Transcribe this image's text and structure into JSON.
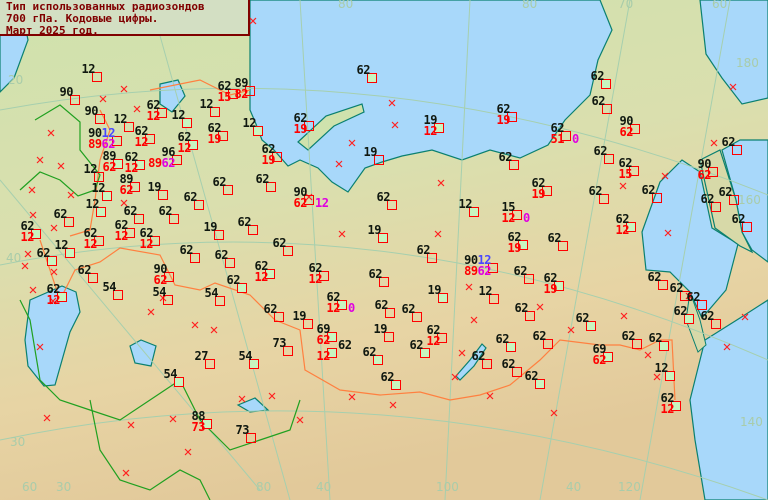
{
  "title": {
    "line1": "Тип использованных радиозондов",
    "line2": "700 гПа. Кодовые цифры.",
    "line3": "Март 2025 год."
  },
  "colors": {
    "k": "#101810",
    "r": "#ff0000",
    "b": "#4848ff",
    "m": "#e000e0",
    "sea": "#a8d8fa",
    "marker_border": "#ff0000",
    "marker_green": "#c8f5c0"
  },
  "grid_labels": [
    "20",
    "30",
    "60",
    "30",
    "80",
    "40",
    "100",
    "40",
    "120",
    "140",
    "160",
    "180",
    "80",
    "80",
    "70",
    "60",
    "40"
  ],
  "stations": [
    {
      "top": [
        [
          "12",
          "k"
        ]
      ],
      "marker": "empty"
    },
    {
      "top": [
        [
          "90",
          "k"
        ]
      ],
      "marker": "empty"
    },
    {
      "top": [
        [
          "90",
          "k"
        ]
      ],
      "marker": "empty"
    },
    {
      "top": [
        [
          "12",
          "k"
        ]
      ],
      "marker": "empty"
    },
    {
      "top": [
        [
          "90",
          "k"
        ],
        [
          "12",
          "b"
        ]
      ],
      "bottom": [
        [
          "89",
          "r"
        ],
        [
          "62",
          "m"
        ]
      ],
      "marker": "empty"
    },
    {
      "top": [
        [
          "62",
          "k"
        ]
      ],
      "bottom": [
        [
          "12",
          "r"
        ]
      ],
      "marker": "empty"
    },
    {
      "top": [
        [
          "62",
          "k"
        ]
      ],
      "bottom": [
        [
          "12",
          "r"
        ]
      ],
      "marker": "empty"
    },
    {
      "top": [
        [
          "12",
          "k"
        ]
      ],
      "marker": "green"
    },
    {
      "top": [
        [
          "62",
          "k"
        ]
      ],
      "bottom": [
        [
          "12",
          "r"
        ]
      ],
      "marker": "green"
    },
    {
      "top": [
        [
          "96",
          "k"
        ]
      ],
      "bottom": [
        [
          "89",
          "r"
        ],
        [
          "62",
          "m"
        ]
      ],
      "marker": "empty"
    },
    {
      "top": [
        [
          "89",
          "k"
        ]
      ],
      "bottom": [
        [
          "62",
          "r"
        ]
      ],
      "marker": "green"
    },
    {
      "top": [
        [
          "62",
          "k"
        ]
      ],
      "bottom": [
        [
          "12",
          "r"
        ]
      ],
      "marker": "green"
    },
    {
      "top": [
        [
          "12",
          "k"
        ]
      ],
      "marker": "empty"
    },
    {
      "top": [
        [
          "89",
          "k"
        ]
      ],
      "bottom": [
        [
          "62",
          "r"
        ]
      ],
      "marker": "empty"
    },
    {
      "top": [
        [
          "12",
          "k"
        ]
      ],
      "marker": "green"
    },
    {
      "top": [
        [
          "19",
          "k"
        ]
      ],
      "marker": "empty"
    },
    {
      "top": [
        [
          "62",
          "k"
        ]
      ],
      "marker": "empty"
    },
    {
      "top": [
        [
          "12",
          "k"
        ]
      ],
      "marker": "green"
    },
    {
      "top": [
        [
          "62",
          "k"
        ]
      ],
      "marker": "empty"
    },
    {
      "top": [
        [
          "62",
          "k"
        ]
      ],
      "marker": "empty"
    },
    {
      "top": [
        [
          "62",
          "k"
        ]
      ],
      "marker": "empty"
    },
    {
      "top": [
        [
          "19",
          "k"
        ]
      ],
      "marker": "empty"
    },
    {
      "top": [
        [
          "62",
          "k"
        ]
      ],
      "marker": "empty"
    },
    {
      "top": [
        [
          "62",
          "k"
        ]
      ],
      "bottom": [
        [
          "12",
          "r"
        ]
      ],
      "marker": "green"
    },
    {
      "top": [
        [
          "62",
          "k"
        ]
      ],
      "bottom": [
        [
          "12",
          "r"
        ]
      ],
      "marker": "empty"
    },
    {
      "top": [
        [
          "62",
          "k"
        ]
      ],
      "bottom": [
        [
          "12",
          "r"
        ]
      ],
      "marker": "empty"
    },
    {
      "top": [
        [
          "62",
          "k"
        ]
      ],
      "bottom": [
        [
          "12",
          "r"
        ]
      ],
      "marker": "empty"
    },
    {
      "top": [
        [
          "12",
          "k"
        ]
      ],
      "marker": "green"
    },
    {
      "top": [
        [
          "62",
          "k"
        ]
      ],
      "marker": "green"
    },
    {
      "top": [
        [
          "62",
          "k"
        ]
      ],
      "marker": "empty"
    },
    {
      "top": [
        [
          "62",
          "k"
        ]
      ],
      "marker": "empty"
    },
    {
      "top": [
        [
          "62",
          "k"
        ]
      ],
      "marker": "empty"
    },
    {
      "top": [
        [
          "62",
          "k"
        ]
      ],
      "bottom": [
        [
          "12",
          "r"
        ]
      ],
      "marker": "green"
    },
    {
      "top": [
        [
          "62",
          "k"
        ]
      ],
      "bottom": [
        [
          "12",
          "r"
        ]
      ],
      "marker": "empty"
    },
    {
      "top": [
        [
          "62",
          "k"
        ]
      ],
      "marker": "empty"
    },
    {
      "top": [
        [
          "90",
          "k"
        ]
      ],
      "bottom": [
        [
          "62",
          "r"
        ]
      ],
      "marker": "empty"
    },
    {
      "top": [
        [
          "54",
          "k"
        ]
      ],
      "marker": "empty"
    },
    {
      "top": [
        [
          "62",
          "k"
        ]
      ],
      "bottom": [
        [
          "12",
          "r"
        ]
      ],
      "marker": "green"
    },
    {
      "top": [
        [
          "54",
          "k"
        ]
      ],
      "marker": "empty"
    },
    {
      "top": [
        [
          "54",
          "k"
        ]
      ],
      "marker": "empty"
    },
    {
      "top": [
        [
          "62",
          "k"
        ]
      ],
      "marker": "green"
    },
    {
      "top": [
        [
          "62",
          "k"
        ]
      ],
      "marker": "empty"
    },
    {
      "top": [
        [
          "19",
          "k"
        ]
      ],
      "marker": "empty"
    },
    {
      "top": [
        [
          "69",
          "k"
        ]
      ],
      "bottom": [
        [
          "62",
          "r"
        ]
      ],
      "marker": "green"
    },
    {
      "top": [
        [
          "62",
          "k"
        ]
      ],
      "bottom": [
        [
          "12",
          "r"
        ]
      ],
      "marker": "green"
    },
    {
      "top": [
        [
          "73",
          "k"
        ]
      ],
      "marker": "empty"
    },
    {
      "top": [
        [
          "27",
          "k"
        ]
      ],
      "marker": "empty"
    },
    {
      "top": [
        [
          "54",
          "k"
        ]
      ],
      "marker": "green"
    },
    {
      "top": [
        [
          "54",
          "k"
        ]
      ],
      "marker": "green"
    },
    {
      "top": [
        [
          "88",
          "k"
        ]
      ],
      "bottom": [
        [
          "73",
          "r"
        ]
      ],
      "marker": "green"
    },
    {
      "top": [
        [
          "73",
          "k"
        ]
      ],
      "marker": "empty"
    },
    {
      "top": [
        [
          "62",
          "k"
        ]
      ],
      "bottom": [
        [
          "12",
          "r"
        ]
      ],
      "tail": [
        "0",
        "m"
      ],
      "marker": "green"
    },
    {
      "top": [
        [
          "19",
          "k"
        ]
      ],
      "marker": "green"
    },
    {
      "top": [
        [
          "12",
          "k"
        ]
      ],
      "marker": "empty"
    },
    {
      "top": [
        [
          "62",
          "k"
        ]
      ],
      "bottom": [
        [
          "19",
          "r"
        ]
      ],
      "marker": "green"
    },
    {
      "top": [
        [
          "62",
          "k"
        ]
      ],
      "marker": "empty"
    },
    {
      "top": [
        [
          "62",
          "k"
        ]
      ],
      "marker": "empty"
    },
    {
      "top": [
        [
          "62",
          "k"
        ]
      ],
      "marker": "empty"
    },
    {
      "top": [
        [
          "62",
          "k"
        ]
      ],
      "marker": "green"
    },
    {
      "top": [
        [
          "19",
          "k"
        ]
      ],
      "marker": "empty"
    },
    {
      "top": [
        [
          "62",
          "k"
        ]
      ],
      "bottom": [
        [
          "12",
          "r"
        ]
      ],
      "marker": "empty"
    },
    {
      "top": [
        [
          "62",
          "k"
        ]
      ],
      "marker": "green"
    },
    {
      "top": [
        [
          "62",
          "k"
        ]
      ],
      "marker": "green"
    },
    {
      "top": [
        [
          "62",
          "k"
        ]
      ],
      "marker": "green"
    },
    {
      "top": [
        [
          "62",
          "k"
        ]
      ],
      "marker": "empty"
    },
    {
      "top": [
        [
          "62",
          "k"
        ]
      ],
      "marker": "empty"
    },
    {
      "top": [
        [
          "62",
          "k"
        ]
      ],
      "marker": "empty"
    },
    {
      "top": [
        [
          "62",
          "k"
        ]
      ],
      "marker": "green"
    },
    {
      "top": [
        [
          "62",
          "k"
        ]
      ],
      "marker": "green"
    },
    {
      "top": [
        [
          "69",
          "k"
        ]
      ],
      "bottom": [
        [
          "62",
          "r"
        ]
      ],
      "marker": "green"
    },
    {
      "top": [
        [
          "62",
          "k"
        ]
      ],
      "marker": "empty"
    },
    {
      "top": [
        [
          "62",
          "k"
        ]
      ],
      "marker": "green"
    },
    {
      "top": [
        [
          "12",
          "k"
        ]
      ],
      "marker": "green"
    },
    {
      "top": [
        [
          "62",
          "k"
        ]
      ],
      "bottom": [
        [
          "12",
          "r"
        ]
      ],
      "marker": "green"
    },
    {
      "top": [
        [
          "62",
          "k"
        ]
      ],
      "marker": "green"
    },
    {
      "top": [
        [
          "62",
          "k"
        ]
      ],
      "marker": "empty"
    },
    {
      "top": [
        [
          "62",
          "k"
        ]
      ],
      "marker": "empty"
    },
    {
      "top": [
        [
          "62",
          "k"
        ]
      ],
      "marker": "empty"
    },
    {
      "top": [
        [
          "62",
          "k"
        ]
      ],
      "marker": "empty"
    },
    {
      "top": [
        [
          "62",
          "k"
        ]
      ],
      "bottom": [
        [
          "19",
          "r"
        ]
      ],
      "marker": "empty"
    },
    {
      "top": [
        [
          "19",
          "k"
        ]
      ],
      "bottom": [
        [
          "12",
          "r"
        ]
      ],
      "marker": "green"
    },
    {
      "top": [
        [
          "62",
          "k"
        ]
      ],
      "bottom": [
        [
          "19",
          "r"
        ]
      ],
      "marker": "empty"
    },
    {
      "top": [
        [
          "12",
          "k"
        ]
      ],
      "marker": "green"
    },
    {
      "top": [
        [
          "62",
          "k"
        ]
      ],
      "bottom": [
        [
          "19",
          "r"
        ]
      ],
      "marker": "empty"
    },
    {
      "top": [
        [
          "19",
          "k"
        ]
      ],
      "marker": "empty"
    },
    {
      "top": [
        [
          "62",
          "k"
        ]
      ],
      "marker": "empty"
    },
    {
      "top": [
        [
          "62",
          "k"
        ]
      ],
      "marker": "empty"
    },
    {
      "top": [
        [
          "90",
          "k"
        ]
      ],
      "bottom": [
        [
          "62",
          "r"
        ]
      ],
      "tail": [
        "12",
        "m"
      ],
      "marker": "empty"
    },
    {
      "top": [
        [
          "62",
          "k"
        ]
      ],
      "marker": "empty"
    },
    {
      "top": [
        [
          "12",
          "k"
        ]
      ],
      "marker": "green"
    },
    {
      "top": [
        [
          "15",
          "k"
        ]
      ],
      "bottom": [
        [
          "12",
          "r"
        ]
      ],
      "tail": [
        "0",
        "m"
      ],
      "marker": "empty"
    },
    {
      "top": [
        [
          "62",
          "k"
        ]
      ],
      "bottom": [
        [
          "19",
          "r"
        ]
      ],
      "marker": "empty"
    },
    {
      "top": [
        [
          "19",
          "k"
        ]
      ],
      "marker": "green"
    },
    {
      "top": [
        [
          "62",
          "k"
        ]
      ],
      "bottom": [
        [
          "19",
          "r"
        ]
      ],
      "marker": "green"
    },
    {
      "top": [
        [
          "62",
          "k"
        ]
      ],
      "marker": "empty"
    },
    {
      "top": [
        [
          "62",
          "k"
        ]
      ],
      "marker": "empty"
    },
    {
      "top": [
        [
          "90",
          "k"
        ],
        [
          "12",
          "b"
        ]
      ],
      "bottom": [
        [
          "89",
          "r"
        ],
        [
          "62",
          "m"
        ]
      ],
      "marker": "empty"
    },
    {
      "top": [
        [
          "62",
          "k"
        ]
      ],
      "marker": "empty"
    },
    {
      "top": [
        [
          "62",
          "k"
        ]
      ],
      "marker": "green"
    },
    {
      "top": [
        [
          "62",
          "k"
        ]
      ],
      "marker": "green"
    },
    {
      "top": [
        [
          "62",
          "k"
        ]
      ],
      "marker": "empty"
    },
    {
      "top": [
        [
          "62",
          "k"
        ]
      ],
      "bottom": [
        [
          "51",
          "r"
        ]
      ],
      "tail": [
        "0",
        "m"
      ],
      "marker": "empty"
    },
    {
      "top": [
        [
          "90",
          "k"
        ]
      ],
      "bottom": [
        [
          "62",
          "r"
        ]
      ],
      "marker": "empty"
    },
    {
      "top": [
        [
          "62",
          "k"
        ]
      ],
      "marker": "empty"
    },
    {
      "top": [
        [
          "62",
          "k"
        ]
      ],
      "bottom": [
        [
          "15",
          "r"
        ]
      ],
      "marker": "empty"
    },
    {
      "top": [
        [
          "62",
          "k"
        ]
      ],
      "marker": "empty"
    },
    {
      "top": [
        [
          "90",
          "k"
        ]
      ],
      "bottom": [
        [
          "62",
          "r"
        ]
      ],
      "marker": "empty"
    },
    {
      "top": [
        [
          "62",
          "k"
        ]
      ],
      "marker": "empty"
    },
    {
      "top": [
        [
          "62",
          "k"
        ]
      ],
      "marker": "empty"
    },
    {
      "top": [
        [
          "62",
          "k"
        ]
      ],
      "marker": "empty"
    },
    {
      "top": [
        [
          "62",
          "k"
        ]
      ],
      "marker": "empty"
    },
    {
      "top": [
        [
          "62",
          "k"
        ]
      ],
      "marker": "empty"
    },
    {
      "top": [
        [
          "62",
          "k"
        ]
      ],
      "bottom": [
        [
          "12",
          "r"
        ]
      ],
      "marker": "green"
    },
    {
      "top": [
        [
          "62",
          "k"
        ]
      ],
      "marker": "empty"
    },
    {
      "top": [
        [
          "62",
          "k"
        ]
      ],
      "bottom": [
        [
          "15",
          "r"
        ]
      ],
      "marker": "empty"
    },
    {
      "top": [
        [
          "89",
          "k"
        ]
      ],
      "bottom": [
        [
          "82",
          "r"
        ]
      ],
      "marker": "empty"
    },
    {
      "top": [
        [
          "12",
          "k"
        ]
      ],
      "marker": "empty"
    },
    {
      "top": [
        [
          "62",
          "k"
        ]
      ],
      "bottom": [
        [
          "19",
          "r"
        ]
      ],
      "marker": "empty"
    },
    {
      "top": [
        [
          "62",
          "k"
        ]
      ],
      "marker": "empty"
    }
  ]
}
